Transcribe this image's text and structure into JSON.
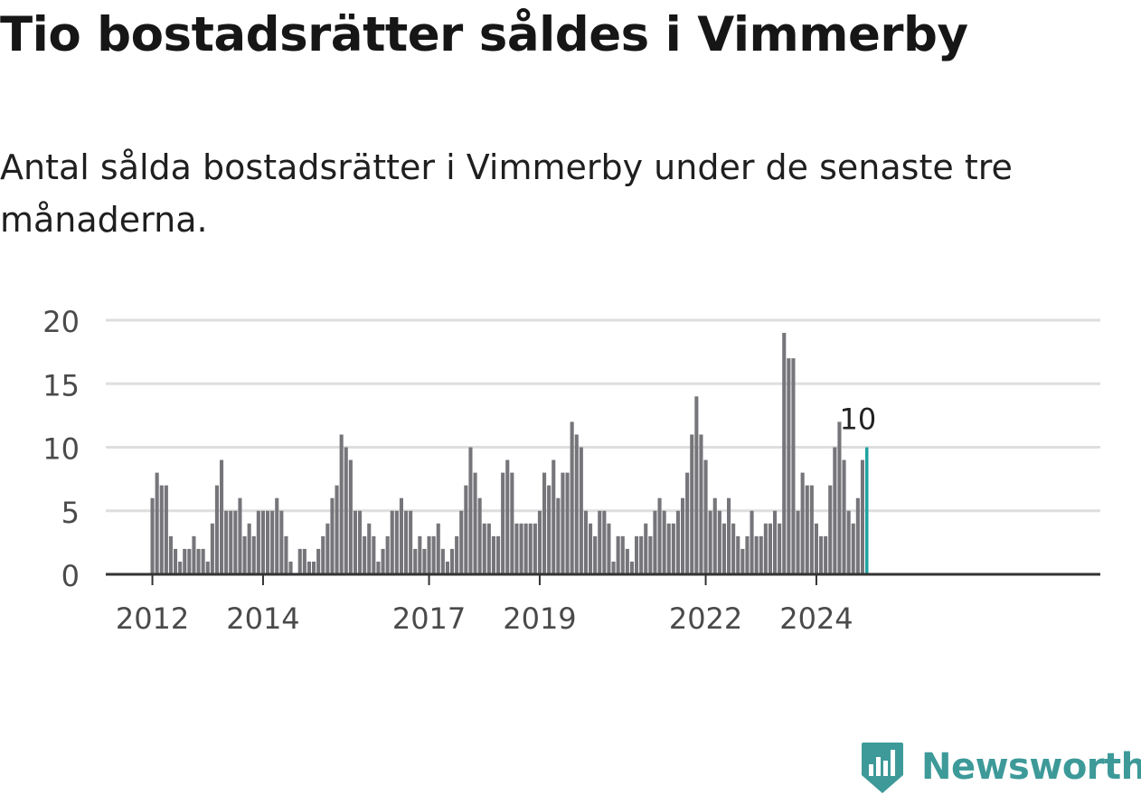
{
  "title": "Tio bostadsrätter såldes i Vimmerby",
  "subtitle": "Antal sålda bostadsrätter i Vimmerby under de senaste tre månaderna.",
  "brand": {
    "name": "Newsworthy",
    "icon": "newsworthy-logo-icon",
    "color": "#3d9a99"
  },
  "colors": {
    "bar": "#76757a",
    "highlight": "#1fa3a1",
    "grid": "#dedede",
    "axis": "#333333",
    "text": "#4a4a4a"
  },
  "chart_data": {
    "type": "bar",
    "title": "",
    "xlabel": "",
    "ylabel": "",
    "ylim": [
      0,
      20
    ],
    "yticks": [
      0,
      5,
      10,
      15,
      20
    ],
    "grid": true,
    "x_start": "2012-01",
    "x_end": "2024-12",
    "xticks": [
      {
        "label": "2012",
        "date": "2012-01"
      },
      {
        "label": "2014",
        "date": "2014-01"
      },
      {
        "label": "2017",
        "date": "2017-01"
      },
      {
        "label": "2019",
        "date": "2019-01"
      },
      {
        "label": "2022",
        "date": "2022-01"
      },
      {
        "label": "2024",
        "date": "2024-01"
      }
    ],
    "series": [
      {
        "first_month": "2012-01",
        "values": [
          6,
          8,
          7,
          7,
          3,
          2,
          1,
          2,
          2,
          3,
          2,
          2,
          1,
          4,
          7,
          9,
          5,
          5,
          5,
          6,
          3,
          4,
          3,
          5,
          5,
          5,
          5,
          6,
          5,
          3,
          1,
          0,
          2,
          2,
          1,
          1,
          2,
          3,
          4,
          6,
          7,
          11,
          10,
          9,
          5,
          5,
          3,
          4,
          3,
          1,
          2,
          3,
          5,
          5,
          6,
          5,
          5,
          2,
          3,
          2,
          3,
          3,
          4,
          2,
          1,
          2,
          3,
          5,
          7,
          10,
          8,
          6,
          4,
          4,
          3,
          3,
          8,
          9,
          8,
          4,
          4,
          4,
          4,
          4,
          5,
          8,
          7,
          9,
          6,
          8,
          8,
          12,
          11,
          10,
          5,
          4,
          3,
          5,
          5,
          4,
          1,
          3,
          3,
          2,
          1,
          3,
          3,
          4,
          3,
          5,
          6,
          5,
          4,
          4,
          5,
          6,
          8,
          11,
          14,
          11,
          9,
          5,
          6,
          5,
          4,
          6,
          4,
          3,
          2,
          3,
          5,
          3,
          3,
          4,
          4,
          5,
          4,
          19,
          17,
          17,
          5,
          8,
          7,
          7,
          4,
          3,
          3,
          7,
          10,
          12,
          9,
          5,
          4,
          6,
          9,
          10
        ]
      }
    ],
    "annotations": [
      {
        "text": "10",
        "date": "2024-10",
        "value": 10
      }
    ]
  }
}
